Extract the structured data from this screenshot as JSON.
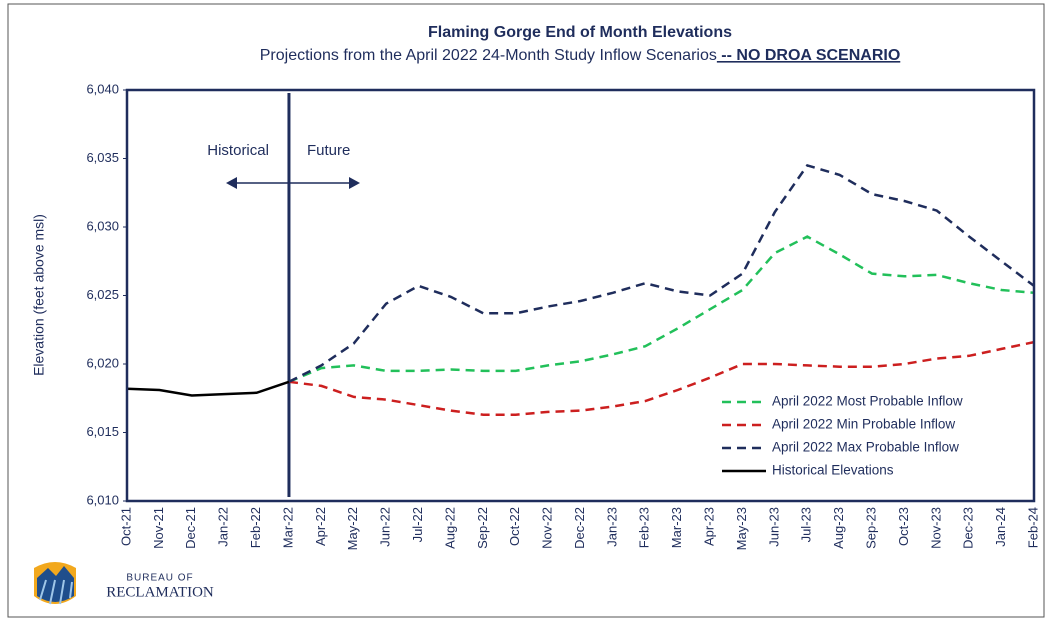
{
  "chart_data": {
    "type": "line",
    "title": "Flaming Gorge End of Month Elevations",
    "subtitle": "Projections from the April 2022 24-Month Study Inflow Scenarios",
    "subtitle_note": " -- NO DROA SCENARIO",
    "ylabel": "Elevation (feet above msl)",
    "annotations": [
      "Historical",
      "Future"
    ],
    "logo": [
      "BUREAU OF",
      "RECLAMATION"
    ],
    "categories": [
      "Oct-21",
      "Nov-21",
      "Dec-21",
      "Jan-22",
      "Feb-22",
      "Mar-22",
      "Apr-22",
      "May-22",
      "Jun-22",
      "Jul-22",
      "Aug-22",
      "Sep-22",
      "Oct-22",
      "Nov-22",
      "Dec-22",
      "Jan-23",
      "Feb-23",
      "Mar-23",
      "Apr-23",
      "May-23",
      "Jun-23",
      "Jul-23",
      "Aug-23",
      "Sep-23",
      "Oct-23",
      "Nov-23",
      "Dec-23",
      "Jan-24",
      "Feb-24"
    ],
    "ylim": [
      6010,
      6040
    ],
    "yticks": [
      {
        "value": 6010,
        "label": "6,010"
      },
      {
        "value": 6015,
        "label": "6,015"
      },
      {
        "value": 6020,
        "label": "6,020"
      },
      {
        "value": 6025,
        "label": "6,025"
      },
      {
        "value": 6030,
        "label": "6,030"
      },
      {
        "value": 6035,
        "label": "6,035"
      },
      {
        "value": 6040,
        "label": "6,040"
      }
    ],
    "grid": false,
    "legend": "lower right",
    "series": [
      {
        "name": "April 2022 Most Probable Inflow",
        "color": "#22c05a",
        "dashed": true,
        "values": [
          null,
          null,
          null,
          null,
          null,
          6018.7,
          6019.7,
          6019.9,
          6019.5,
          6019.5,
          6019.6,
          6019.5,
          6019.5,
          6019.9,
          6020.2,
          6020.7,
          6021.3,
          6022.6,
          6024.0,
          6025.4,
          6028.1,
          6029.3,
          6028.0,
          6026.6,
          6026.4,
          6026.5,
          6025.9,
          6025.4,
          6025.2
        ]
      },
      {
        "name": "April 2022 Min Probable Inflow",
        "color": "#cc1f1f",
        "dashed": true,
        "values": [
          null,
          null,
          null,
          null,
          null,
          6018.7,
          6018.4,
          6017.6,
          6017.4,
          6017.0,
          6016.6,
          6016.3,
          6016.3,
          6016.5,
          6016.6,
          6016.9,
          6017.3,
          6018.1,
          6019.0,
          6020.0,
          6020.0,
          6019.9,
          6019.8,
          6019.8,
          6020.0,
          6020.4,
          6020.6,
          6021.1,
          6021.6
        ]
      },
      {
        "name": "April 2022 Max Probable Inflow",
        "color": "#1f2d5c",
        "dashed": true,
        "values": [
          null,
          null,
          null,
          null,
          null,
          6018.7,
          6019.9,
          6021.5,
          6024.4,
          6025.7,
          6024.9,
          6023.7,
          6023.7,
          6024.2,
          6024.6,
          6025.2,
          6025.9,
          6025.3,
          6025.0,
          6026.6,
          6031.1,
          6034.5,
          6033.8,
          6032.4,
          6031.9,
          6031.2,
          6029.3,
          6027.5,
          6025.7
        ]
      },
      {
        "name": "Historical Elevations",
        "color": "#000000",
        "dashed": false,
        "values": [
          6018.2,
          6018.1,
          6017.7,
          6017.8,
          6017.9,
          6018.7,
          null,
          null,
          null,
          null,
          null,
          null,
          null,
          null,
          null,
          null,
          null,
          null,
          null,
          null,
          null,
          null,
          null,
          null,
          null,
          null,
          null,
          null,
          null
        ]
      }
    ]
  }
}
